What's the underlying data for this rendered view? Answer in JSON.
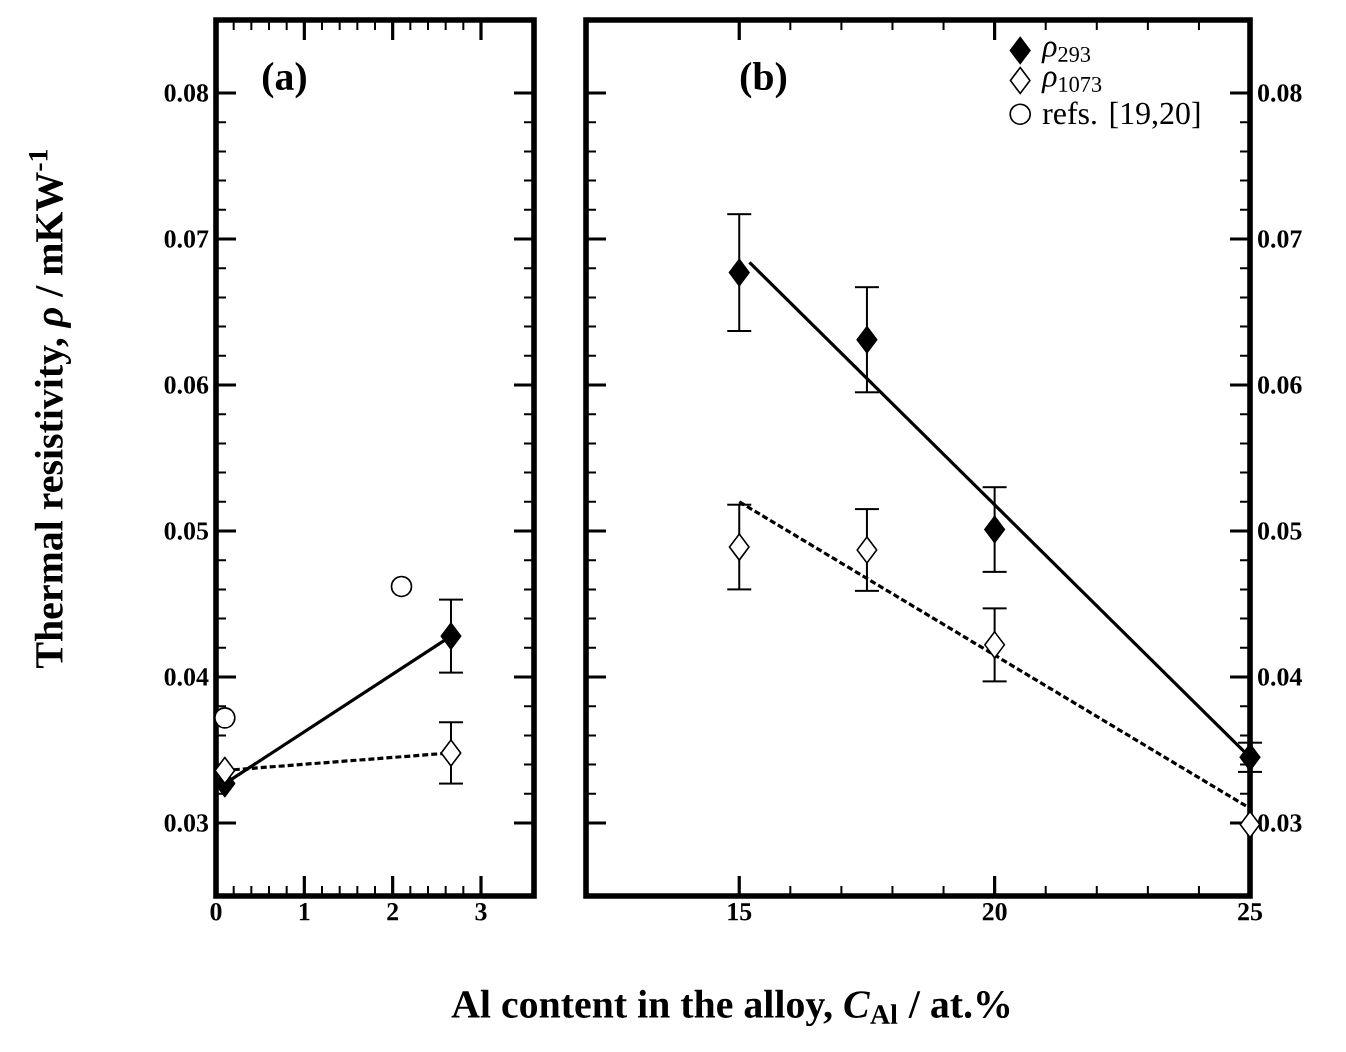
{
  "chart_data": [
    {
      "type": "line",
      "annotations": [
        "(a)"
      ],
      "ylabel": "Thermal resistivity, *ρ* / mKW$^{-1}$",
      "xlabel": "Al content in the alloy, *C*$_{Al}$ / at.%",
      "xlim": [
        0,
        3.6
      ],
      "xticks": [
        0,
        1,
        2,
        3
      ],
      "ylim": [
        0.025,
        0.085
      ],
      "yticks": [
        0.03,
        0.04,
        0.05,
        0.06,
        0.07,
        0.08
      ],
      "legend": "top right",
      "series": [
        {
          "name": "*ρ*$_{293}$",
          "x": [
            0.1,
            2.66
          ],
          "values": [
            0.0327,
            0.0428
          ],
          "errors": [
            null,
            0.0025
          ],
          "color": "#000000",
          "marker": "diamond",
          "line_style": "solid"
        },
        {
          "name": "*ρ*$_{1073}$",
          "x": [
            0.1,
            2.66
          ],
          "values": [
            0.0336,
            0.0348
          ],
          "errors": [
            null,
            0.0021
          ],
          "color": "#ffffff",
          "marker": "diamond",
          "line_style": "dashed"
        },
        {
          "type": "scatter",
          "name": "refs. [19,20]",
          "x": [
            0.1,
            2.1
          ],
          "values": [
            0.0372,
            0.0462
          ],
          "color": "#ffffff",
          "marker": "circle"
        }
      ]
    },
    {
      "type": "line",
      "annotations": [
        "(b)"
      ],
      "xlim": [
        12,
        25
      ],
      "xticks": [
        15,
        20,
        25
      ],
      "y2lim": [
        0.025,
        0.085
      ],
      "y2ticks": [
        0.03,
        0.04,
        0.05,
        0.06,
        0.07,
        0.08
      ],
      "series": [
        {
          "type": "scatter",
          "axis": "y2",
          "x": [
            15,
            17.5,
            20,
            25
          ],
          "values": [
            0.0677,
            0.0631,
            0.0501,
            0.0345
          ],
          "errors": [
            0.004,
            0.0036,
            0.0029,
            0.001
          ],
          "color": "#000000",
          "marker": "diamond"
        },
        {
          "type": "scatter",
          "axis": "y2",
          "x": [
            15,
            17.5,
            20,
            25
          ],
          "values": [
            0.0489,
            0.0487,
            0.0422,
            0.0299
          ],
          "errors": [
            0.0029,
            0.0028,
            0.0025,
            null
          ],
          "color": "#ffffff",
          "marker": "diamond"
        },
        {
          "axis": "y2",
          "x": [
            15.2,
            25
          ],
          "values": [
            0.0684,
            0.0345
          ],
          "color": "#000000",
          "marker": "none",
          "line_style": "solid"
        },
        {
          "axis": "y2",
          "x": [
            15,
            25
          ],
          "values": [
            0.052,
            0.031
          ],
          "color": "#000000",
          "marker": "none",
          "line_style": "dashed"
        }
      ]
    }
  ]
}
